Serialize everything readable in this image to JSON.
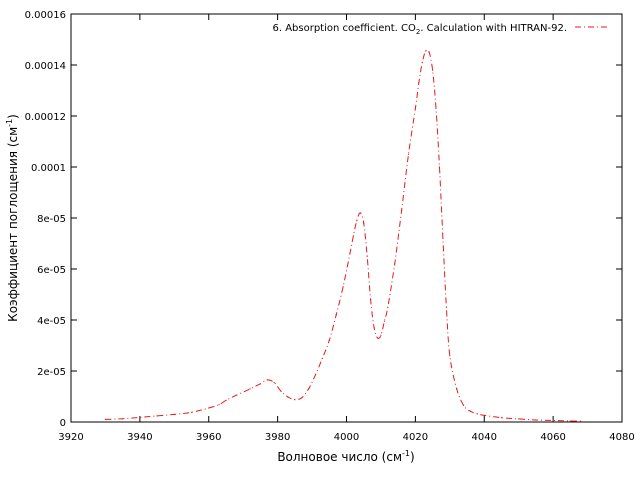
{
  "chart_data": {
    "type": "line",
    "title": "",
    "xlabel": "Волновое число (см",
    "xlabel_sup": "-1",
    "xlabel_end": ")",
    "ylabel": "Коэффициент поглощения (см",
    "ylabel_sup": "-1",
    "ylabel_end": ")",
    "xlim": [
      3920,
      4080
    ],
    "ylim": [
      0,
      0.00016
    ],
    "xticks": [
      3920,
      3940,
      3960,
      3980,
      4000,
      4020,
      4040,
      4060,
      4080
    ],
    "xtick_labels": [
      "3920",
      "3940",
      "3960",
      "3980",
      "4000",
      "4020",
      "4040",
      "4060",
      "4080"
    ],
    "yticks": [
      0,
      2e-05,
      4e-05,
      6e-05,
      8e-05,
      0.0001,
      0.00012,
      0.00014,
      0.00016
    ],
    "ytick_labels": [
      "0",
      "2e-05",
      "4e-05",
      "6e-05",
      "8e-05",
      "0.0001",
      "0.00012",
      "0.00014",
      "0.00016"
    ],
    "grid": false,
    "legend_position": "top-right",
    "series": [
      {
        "name_prefix": "6. Absorption coefficient. CO",
        "name_sub": "2",
        "name_suffix": ". Calculation with HITRAN-92.",
        "color": "#e41a1c",
        "line_style": "dash-dot",
        "x": [
          3930,
          3935,
          3940,
          3945,
          3950,
          3955,
          3960,
          3963,
          3965,
          3968,
          3972,
          3975,
          3977,
          3979,
          3981,
          3983,
          3985,
          3987,
          3989,
          3991,
          3993,
          3995,
          3997,
          3999,
          4001,
          4002,
          4003,
          4004,
          4005,
          4006,
          4007,
          4008,
          4009,
          4010,
          4011,
          4012,
          4014,
          4016,
          4018,
          4020,
          4021,
          4022,
          4023,
          4024,
          4025,
          4026,
          4027,
          4028,
          4029,
          4030,
          4032,
          4034,
          4036,
          4038,
          4040,
          4045,
          4050,
          4055,
          4060,
          4065,
          4068
        ],
        "y": [
          1e-06,
          1.3e-06,
          1.8e-06,
          2.4e-06,
          3e-06,
          3.8e-06,
          5.5e-06,
          6.8e-06,
          8.5e-06,
          1.05e-05,
          1.3e-05,
          1.5e-05,
          1.65e-05,
          1.55e-05,
          1.2e-05,
          9.8e-06,
          8.8e-06,
          9.5e-06,
          1.3e-05,
          1.85e-05,
          2.5e-05,
          3.2e-05,
          4.2e-05,
          5.3e-05,
          6.6e-05,
          7.3e-05,
          7.9e-05,
          8.2e-05,
          7.8e-05,
          6.5e-05,
          4.8e-05,
          3.7e-05,
          3.3e-05,
          3.4e-05,
          3.95e-05,
          4.5e-05,
          6.2e-05,
          8.3e-05,
          0.000105,
          0.000123,
          0.000133,
          0.000141,
          0.0001455,
          0.000145,
          0.000138,
          0.000123,
          0.0001,
          7.2e-05,
          4.5e-05,
          2.6e-05,
          1.3e-05,
          6.5e-06,
          4.2e-06,
          3.2e-06,
          2.6e-06,
          1.7e-06,
          1.2e-06,
          8e-07,
          6e-07,
          4e-07,
          3e-07
        ]
      }
    ]
  }
}
